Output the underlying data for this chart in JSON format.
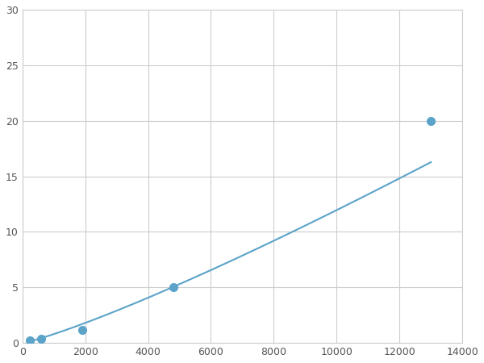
{
  "x": [
    250,
    600,
    1900,
    4800,
    13000
  ],
  "y": [
    0.2,
    0.4,
    1.2,
    5.0,
    20.0
  ],
  "line_color": "#5ba3c9",
  "marker_color": "#5ba3c9",
  "marker_size": 7,
  "marker_style": "o",
  "line_width": 1.5,
  "xlim": [
    0,
    14000
  ],
  "ylim": [
    0,
    30
  ],
  "xticks": [
    0,
    2000,
    4000,
    6000,
    8000,
    10000,
    12000,
    14000
  ],
  "yticks": [
    0,
    5,
    10,
    15,
    20,
    25,
    30
  ],
  "grid_color": "#cccccc",
  "grid_linestyle": "-",
  "grid_linewidth": 0.8,
  "background_color": "#ffffff",
  "spine_color": "#cccccc"
}
